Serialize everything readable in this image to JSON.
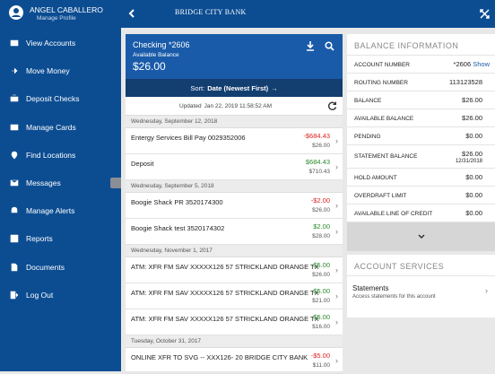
{
  "sidebar": {
    "user_name": "ANGEL CABALLERO",
    "profile_link": "Manage Profile",
    "menu": [
      "View Accounts",
      "Move Money",
      "Deposit Checks",
      "Manage Cards",
      "Find Locations",
      "Messages",
      "Manage Alerts",
      "Reports",
      "Documents",
      "Log Out"
    ]
  },
  "header": {
    "logo": "BRIDGE CITY BANK"
  },
  "account": {
    "name": "Checking *2606",
    "balance_label": "Available Balance",
    "balance": "$26.00",
    "sort_label": "Sort:",
    "sort_value": "Date (Newest First)",
    "updated_label": "Updated",
    "updated_time": "Jan 22, 2019 11:58:52 AM"
  },
  "transactions": [
    {
      "date": "Wednesday, September 12, 2018",
      "items": [
        {
          "description": "Entergy Services Bill Pay 0029352006",
          "amount": "-$684.43",
          "balance": "$26.00"
        },
        {
          "description": "Deposit",
          "amount": "$684.43",
          "balance": "$710.43"
        }
      ]
    },
    {
      "date": "Wednesday, September 5, 2018",
      "items": [
        {
          "description": "Boogie Shack PR 3520174300",
          "amount": "-$2.00",
          "balance": "$26.00"
        },
        {
          "description": "Boogie Shack test 3520174302",
          "amount": "$2.00",
          "balance": "$28.00"
        }
      ]
    },
    {
      "date": "Wednesday, November 1, 2017",
      "items": [
        {
          "description": "ATM: XFR FM SAV XXXXX126 57 STRICKLAND ORANGE TX",
          "amount": "$5.00",
          "balance": "$26.00"
        },
        {
          "description": "ATM: XFR FM SAV XXXXX126 57 STRICKLAND ORANGE TX",
          "amount": "$5.00",
          "balance": "$21.00"
        },
        {
          "description": "ATM: XFR FM SAV XXXXX126 57 STRICKLAND ORANGE TX",
          "amount": "$5.00",
          "balance": "$16.00"
        }
      ]
    },
    {
      "date": "Tuesday, October 31, 2017",
      "items": [
        {
          "description": "ONLINE XFR TO SVG -- XXX126- 20 BRIDGE CITY BANK",
          "amount": "-$5.00",
          "balance": "$11.00"
        }
      ]
    }
  ],
  "balance_info": {
    "title": "BALANCE INFORMATION",
    "show_link": "Show",
    "rows": [
      {
        "label": "ACCOUNT NUMBER",
        "value": "*2606"
      },
      {
        "label": "ROUTING NUMBER",
        "value": "113123528"
      },
      {
        "label": "BALANCE",
        "value": "$26.00"
      },
      {
        "label": "AVAILABLE BALANCE",
        "value": "$26.00"
      },
      {
        "label": "PENDING",
        "value": "$0.00"
      },
      {
        "label": "STATEMENT BALANCE",
        "value": "$26.00",
        "sub": "12/31/2018"
      },
      {
        "label": "HOLD AMOUNT",
        "value": "$0.00"
      },
      {
        "label": "OVERDRAFT LIMIT",
        "value": "$0.00"
      },
      {
        "label": "AVAILABLE LINE OF CREDIT",
        "value": "$0.00"
      }
    ]
  },
  "account_services": {
    "title": "ACCOUNT SERVICES",
    "items": [
      {
        "title": "Statements",
        "description": "Access statements for this account"
      }
    ]
  }
}
